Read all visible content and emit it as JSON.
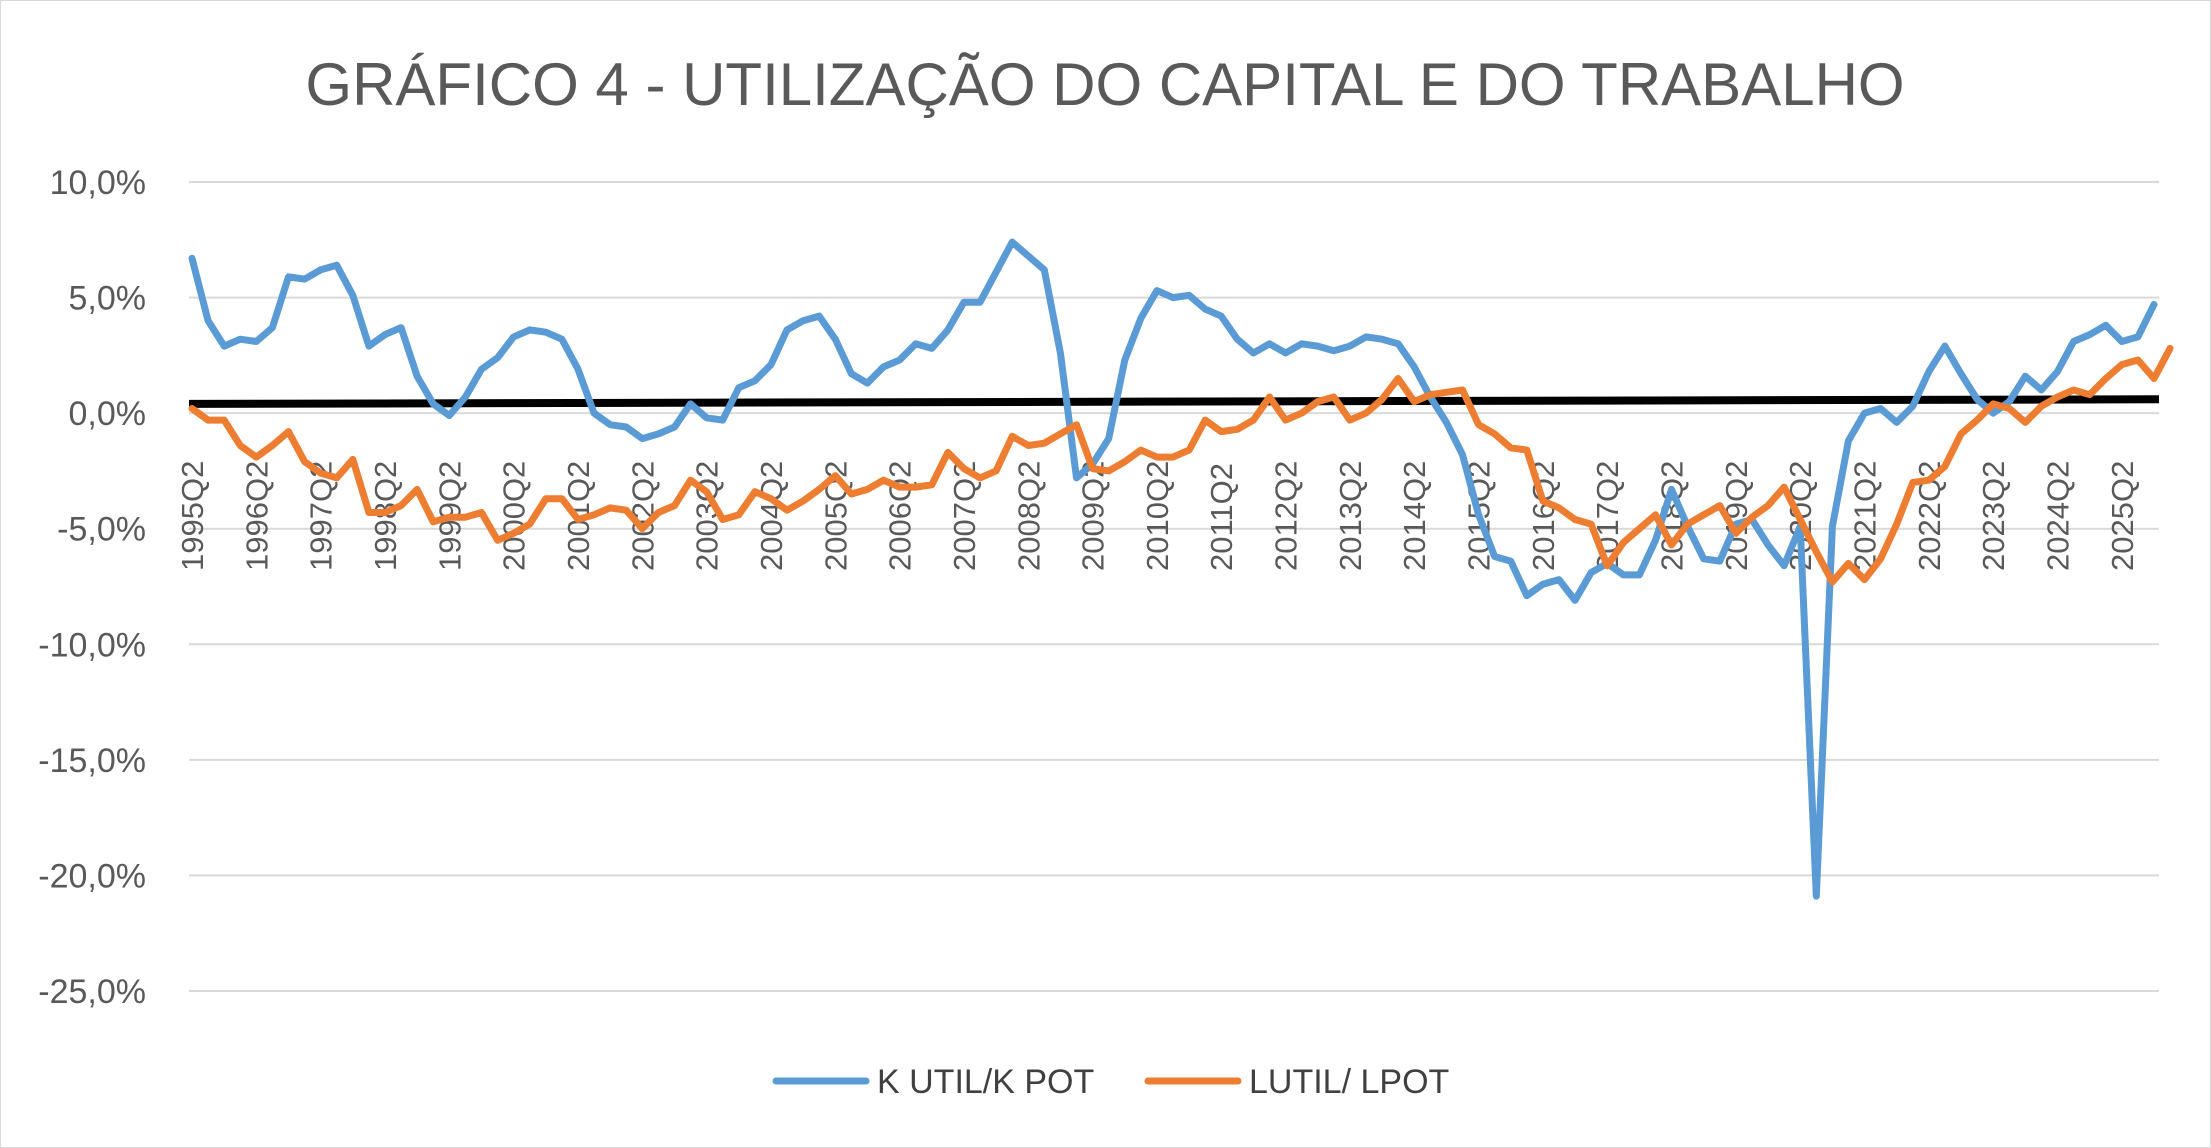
{
  "chart_data": {
    "type": "line",
    "title": "GRÁFICO 4 - UTILIZAÇÃO DO CAPITAL E DO TRABALHO",
    "xlabel": "",
    "ylabel": "",
    "ylim": [
      -25,
      10
    ],
    "y_ticks": [
      "10,0%",
      "5,0%",
      "0,0%",
      "-5,0%",
      "-10,0%",
      "-15,0%",
      "-20,0%",
      "-25,0%"
    ],
    "y_tick_values": [
      10,
      5,
      0,
      -5,
      -10,
      -15,
      -20,
      -25
    ],
    "x_start": "1995Q2",
    "x_labels": [
      "1995Q2",
      "1996Q2",
      "1997Q2",
      "1998Q2",
      "1999Q2",
      "2000Q2",
      "2001Q2",
      "2002Q2",
      "2003Q2",
      "2004Q2",
      "2005Q2",
      "2006Q2",
      "2007Q2",
      "2008Q2",
      "2009Q2",
      "2010Q2",
      "2011Q2",
      "2012Q2",
      "2013Q2",
      "2014Q2",
      "2015Q2",
      "2016Q2",
      "2017Q2",
      "2018Q2",
      "2019Q2",
      "2020Q2",
      "2021Q2",
      "2022Q2",
      "2023Q2",
      "2024Q2",
      "2025Q2"
    ],
    "grid": true,
    "legend_position": "bottom",
    "series": [
      {
        "name": "K UTIL/K POT",
        "color": "#5b9bd5",
        "values": [
          6.7,
          4.0,
          2.9,
          3.2,
          3.1,
          3.7,
          5.9,
          5.8,
          6.2,
          6.4,
          5.1,
          2.9,
          3.4,
          3.7,
          1.6,
          0.4,
          -0.1,
          0.7,
          1.9,
          2.4,
          3.3,
          3.6,
          3.5,
          3.2,
          1.9,
          0.0,
          -0.5,
          -0.6,
          -1.1,
          -0.9,
          -0.6,
          0.4,
          -0.2,
          -0.3,
          1.1,
          1.4,
          2.1,
          3.6,
          4.0,
          4.2,
          3.2,
          1.7,
          1.3,
          2.0,
          2.3,
          3.0,
          2.8,
          3.6,
          4.8,
          4.8,
          6.1,
          7.4,
          6.8,
          6.2,
          2.6,
          -2.8,
          -2.2,
          -1.1,
          2.3,
          4.1,
          5.3,
          5.0,
          5.1,
          4.5,
          4.2,
          3.2,
          2.6,
          3.0,
          2.6,
          3.0,
          2.9,
          2.7,
          2.9,
          3.3,
          3.2,
          3.0,
          2.0,
          0.7,
          -0.4,
          -1.8,
          -4.4,
          -6.2,
          -6.4,
          -7.9,
          -7.4,
          -7.2,
          -8.1,
          -6.9,
          -6.5,
          -7.0,
          -7.0,
          -5.5,
          -3.3,
          -4.9,
          -6.3,
          -6.4,
          -4.8,
          -4.6,
          -5.7,
          -6.6,
          -4.9,
          -20.9,
          -4.9,
          -1.2,
          0.0,
          0.2,
          -0.4,
          0.3,
          1.8,
          2.9,
          1.7,
          0.6,
          0.0,
          0.5,
          1.6,
          1.0,
          1.8,
          3.1,
          3.4,
          3.8,
          3.1,
          3.3,
          4.7
        ]
      },
      {
        "name": "LUTIL/ LPOT",
        "color": "#ed7d31",
        "values": [
          0.2,
          -0.3,
          -0.3,
          -1.4,
          -1.9,
          -1.4,
          -0.8,
          -2.1,
          -2.6,
          -2.8,
          -2.0,
          -4.3,
          -4.3,
          -4.0,
          -3.3,
          -4.7,
          -4.5,
          -4.5,
          -4.3,
          -5.5,
          -5.2,
          -4.8,
          -3.7,
          -3.7,
          -4.6,
          -4.4,
          -4.1,
          -4.2,
          -5.0,
          -4.3,
          -4.0,
          -2.9,
          -3.4,
          -4.6,
          -4.4,
          -3.4,
          -3.7,
          -4.2,
          -3.8,
          -3.3,
          -2.7,
          -3.5,
          -3.3,
          -2.9,
          -3.2,
          -3.2,
          -3.1,
          -1.7,
          -2.4,
          -2.8,
          -2.5,
          -1.0,
          -1.4,
          -1.3,
          -0.9,
          -0.5,
          -2.4,
          -2.5,
          -2.1,
          -1.6,
          -1.9,
          -1.9,
          -1.6,
          -0.3,
          -0.8,
          -0.7,
          -0.3,
          0.7,
          -0.3,
          0.0,
          0.5,
          0.7,
          -0.3,
          0.0,
          0.6,
          1.5,
          0.5,
          0.8,
          0.9,
          1.0,
          -0.5,
          -0.9,
          -1.5,
          -1.6,
          -3.8,
          -4.1,
          -4.6,
          -4.8,
          -6.6,
          -5.6,
          -5.0,
          -4.4,
          -5.7,
          -4.8,
          -4.4,
          -4.0,
          -5.2,
          -4.5,
          -4.0,
          -3.2,
          -4.6,
          -6.0,
          -7.3,
          -6.5,
          -7.2,
          -6.3,
          -4.8,
          -3.0,
          -2.9,
          -2.3,
          -0.9,
          -0.3,
          0.4,
          0.2,
          -0.4,
          0.3,
          0.7,
          1.0,
          0.8,
          1.5,
          2.1,
          2.3,
          1.5,
          2.8
        ]
      }
    ],
    "reference_line": {
      "value": 0.4,
      "end_value": 0.6,
      "color": "#000000"
    }
  }
}
